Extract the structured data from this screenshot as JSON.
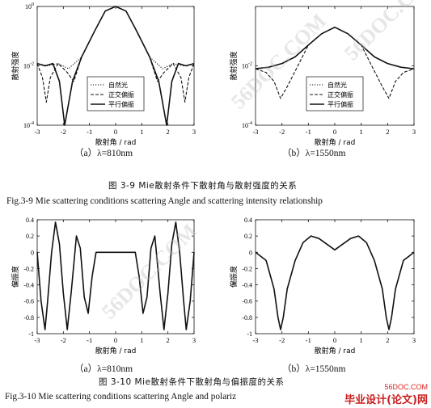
{
  "fig39": {
    "caption_cn": "图 3-9 Mie散射条件下散射角与散射强度的关系",
    "caption_en": "Fig.3-9 Mie scattering conditions scattering Angle and scattering intensity relationship",
    "sub_a": "（a）λ=810nm",
    "sub_b": "（b）λ=1550nm"
  },
  "fig310": {
    "caption_cn": "图 3-10 Mie散射条件下散射角与偏振度的关系",
    "caption_en": "Fig.3-10 Mie scattering conditions scattering Angle and polariz",
    "sub_a": "（a）λ=810nm",
    "sub_b": "（b）λ=1550nm"
  },
  "watermark": {
    "text": "56DOC.COM",
    "logo_url": "56DOC.COM",
    "logo_text": "毕业设计(论文)网"
  },
  "chart_data": [
    {
      "type": "line",
      "title": "",
      "xlabel": "散射角 / rad",
      "ylabel": "散射强度",
      "xlim": [
        -3,
        3
      ],
      "y_scale": "log",
      "ylim": [
        0.0001,
        1
      ],
      "x_ticks": [
        "-3",
        "-2",
        "-1",
        "0",
        "1",
        "2",
        "3"
      ],
      "y_ticks": [
        "10^0",
        "10^-2",
        "10^-4"
      ],
      "legend": "bottom-center",
      "series": [
        {
          "name": "自然光",
          "x": [
            -3,
            -2.6,
            -2.2,
            -1.8,
            -1.3,
            -0.8,
            -0.4,
            0,
            0.4,
            0.8,
            1.3,
            1.8,
            2.2,
            2.6,
            3
          ],
          "y": [
            0.012,
            0.01,
            0.012,
            0.008,
            0.02,
            0.15,
            0.7,
            1.0,
            0.7,
            0.15,
            0.02,
            0.008,
            0.012,
            0.01,
            0.012
          ]
        },
        {
          "name": "正交偏振",
          "x": [
            -3,
            -2.8,
            -2.65,
            -2.5,
            -2.2,
            -1.85,
            -1.6,
            -1.3,
            -0.8,
            -0.4,
            0,
            0.4,
            0.8,
            1.3,
            1.6,
            1.85,
            2.2,
            2.5,
            2.65,
            2.8,
            3
          ],
          "y": [
            0.012,
            0.004,
            0.0006,
            0.004,
            0.012,
            0.006,
            0.003,
            0.02,
            0.15,
            0.7,
            1.0,
            0.7,
            0.15,
            0.02,
            0.003,
            0.006,
            0.012,
            0.004,
            0.0006,
            0.004,
            0.012
          ]
        },
        {
          "name": "平行偏振",
          "x": [
            -3,
            -2.7,
            -2.4,
            -2.15,
            -1.95,
            -1.65,
            -1.3,
            -0.8,
            -0.4,
            0,
            0.4,
            0.8,
            1.3,
            1.65,
            1.95,
            2.15,
            2.4,
            2.7,
            3
          ],
          "y": [
            0.012,
            0.01,
            0.012,
            0.003,
            0.0001,
            0.003,
            0.02,
            0.15,
            0.7,
            1.0,
            0.7,
            0.15,
            0.02,
            0.003,
            0.0001,
            0.003,
            0.012,
            0.01,
            0.012
          ]
        }
      ]
    },
    {
      "type": "line",
      "title": "",
      "xlabel": "散射角 / rad",
      "ylabel": "散射强度",
      "xlim": [
        -3,
        3
      ],
      "y_scale": "log",
      "ylim": [
        0.0001,
        1
      ],
      "x_ticks": [
        "-3",
        "-2",
        "-1",
        "0",
        "1",
        "2",
        "3"
      ],
      "y_ticks": [
        "10^-2",
        "10^-4"
      ],
      "legend": "bottom-center",
      "series": [
        {
          "name": "自然光",
          "x": [
            -3,
            -2.5,
            -2,
            -1.5,
            -1,
            -0.5,
            0,
            0.5,
            1,
            1.5,
            2,
            2.5,
            3
          ],
          "y": [
            0.008,
            0.009,
            0.012,
            0.02,
            0.05,
            0.12,
            0.2,
            0.12,
            0.05,
            0.02,
            0.012,
            0.009,
            0.008
          ]
        },
        {
          "name": "正交偏振",
          "x": [
            -3,
            -2.6,
            -2.3,
            -2.05,
            -1.8,
            -1.4,
            -1,
            -0.5,
            0,
            0.5,
            1,
            1.4,
            1.8,
            2.05,
            2.3,
            2.6,
            3
          ],
          "y": [
            0.008,
            0.006,
            0.003,
            0.0008,
            0.002,
            0.01,
            0.05,
            0.12,
            0.2,
            0.12,
            0.05,
            0.01,
            0.002,
            0.0008,
            0.003,
            0.006,
            0.008
          ]
        },
        {
          "name": "平行偏振",
          "x": [
            -3,
            -2.5,
            -2,
            -1.5,
            -1,
            -0.5,
            0,
            0.5,
            1,
            1.5,
            2,
            2.5,
            3
          ],
          "y": [
            0.008,
            0.009,
            0.012,
            0.02,
            0.05,
            0.12,
            0.2,
            0.12,
            0.05,
            0.02,
            0.012,
            0.009,
            0.008
          ]
        }
      ]
    },
    {
      "type": "line",
      "title": "",
      "xlabel": "散射角 / rad",
      "ylabel": "偏振度",
      "xlim": [
        -3,
        3
      ],
      "ylim": [
        -1,
        0.4
      ],
      "x_ticks": [
        "-3",
        "-2",
        "-1",
        "0",
        "1",
        "2",
        "3"
      ],
      "y_ticks": [
        "0.4",
        "0.2",
        "0",
        "-0.2",
        "-0.4",
        "-0.6",
        "-0.8",
        "-1"
      ],
      "series": [
        {
          "name": "",
          "x": [
            -3,
            -2.85,
            -2.7,
            -2.6,
            -2.45,
            -2.3,
            -2.15,
            -2.0,
            -1.85,
            -1.7,
            -1.5,
            -1.35,
            -1.2,
            -1.05,
            -0.9,
            -0.75,
            -0.6,
            -0.4,
            -0.2,
            0,
            0.2,
            0.4,
            0.6,
            0.75,
            0.9,
            1.05,
            1.2,
            1.35,
            1.5,
            1.7,
            1.85,
            2.0,
            2.15,
            2.3,
            2.45,
            2.6,
            2.7,
            2.85,
            3
          ],
          "y": [
            0.0,
            -0.6,
            -0.95,
            -0.6,
            0.0,
            0.37,
            0.1,
            -0.5,
            -0.95,
            -0.5,
            0.2,
            0.05,
            -0.55,
            -0.75,
            -0.3,
            0.0,
            0.0,
            0.0,
            0.0,
            0.0,
            0.0,
            0.0,
            0.0,
            0.0,
            -0.3,
            -0.75,
            -0.55,
            0.05,
            0.2,
            -0.5,
            -0.95,
            -0.5,
            0.1,
            0.37,
            0.0,
            -0.6,
            -0.95,
            -0.6,
            0.0
          ]
        }
      ]
    },
    {
      "type": "line",
      "title": "",
      "xlabel": "散射角 / rad",
      "ylabel": "偏振度",
      "xlim": [
        -3,
        3
      ],
      "ylim": [
        -1,
        0.4
      ],
      "x_ticks": [
        "-3",
        "-2",
        "-1",
        "0",
        "1",
        "2",
        "3"
      ],
      "y_ticks": [
        "0.4",
        "0.2",
        "0",
        "-0.2",
        "-0.4",
        "-0.6",
        "-0.8",
        "-1"
      ],
      "series": [
        {
          "name": "",
          "x": [
            -3,
            -2.6,
            -2.3,
            -2.15,
            -2.05,
            -1.95,
            -1.8,
            -1.5,
            -1.2,
            -0.9,
            -0.6,
            -0.3,
            0,
            0.3,
            0.6,
            0.9,
            1.2,
            1.5,
            1.8,
            1.95,
            2.05,
            2.15,
            2.3,
            2.6,
            3
          ],
          "y": [
            0.0,
            -0.1,
            -0.45,
            -0.8,
            -0.95,
            -0.8,
            -0.45,
            -0.1,
            0.12,
            0.2,
            0.17,
            0.1,
            0.03,
            0.1,
            0.17,
            0.2,
            0.12,
            -0.1,
            -0.45,
            -0.8,
            -0.95,
            -0.8,
            -0.45,
            -0.1,
            0.0
          ]
        }
      ]
    }
  ]
}
